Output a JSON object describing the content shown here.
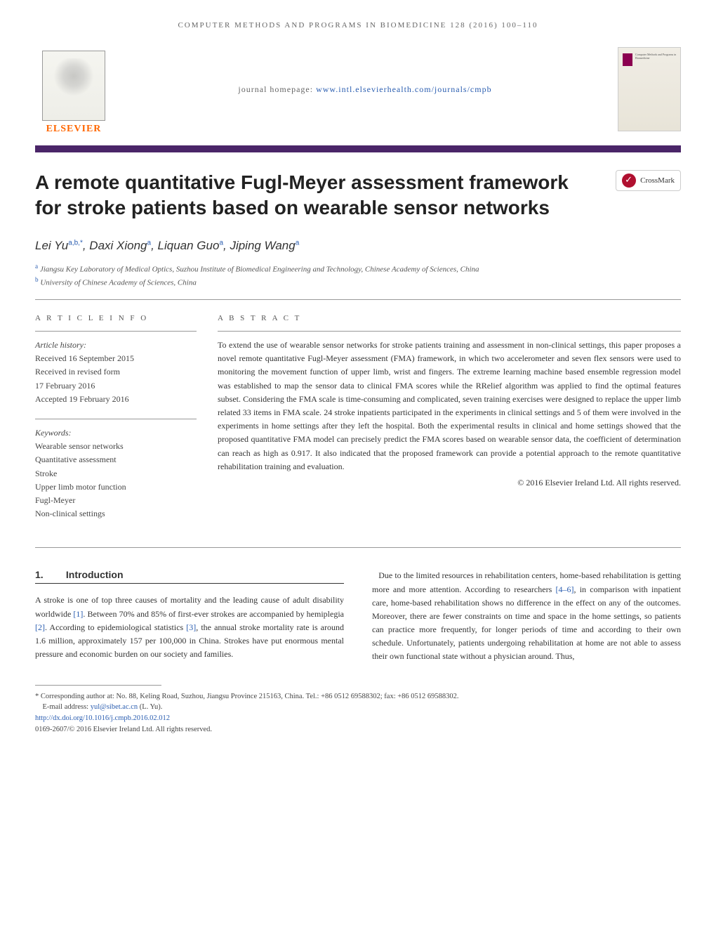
{
  "running_head": "COMPUTER METHODS AND PROGRAMS IN BIOMEDICINE 128 (2016) 100–110",
  "elsevier_label": "ELSEVIER",
  "homepage_prefix": "journal homepage: ",
  "homepage_url": "www.intl.elsevierhealth.com/journals/cmpb",
  "crossmark_label": "CrossMark",
  "title": "A remote quantitative Fugl-Meyer assessment framework for stroke patients based on wearable sensor networks",
  "authors_html": "Lei Yu",
  "author_list": [
    {
      "name": "Lei Yu",
      "sup": "a,b,*"
    },
    {
      "name": "Daxi Xiong",
      "sup": "a"
    },
    {
      "name": "Liquan Guo",
      "sup": "a"
    },
    {
      "name": "Jiping Wang",
      "sup": "a"
    }
  ],
  "affiliations": [
    {
      "sup": "a",
      "text": "Jiangsu Key Laboratory of Medical Optics, Suzhou Institute of Biomedical Engineering and Technology, Chinese Academy of Sciences, China"
    },
    {
      "sup": "b",
      "text": "University of Chinese Academy of Sciences, China"
    }
  ],
  "article_info_label": "A R T I C L E   I N F O",
  "abstract_label": "A B S T R A C T",
  "history_heading": "Article history:",
  "history": [
    "Received 16 September 2015",
    "Received in revised form",
    "17 February 2016",
    "Accepted 19 February 2016"
  ],
  "keywords_heading": "Keywords:",
  "keywords": [
    "Wearable sensor networks",
    "Quantitative assessment",
    "Stroke",
    "Upper limb motor function",
    "Fugl-Meyer",
    "Non-clinical settings"
  ],
  "abstract": "To extend the use of wearable sensor networks for stroke patients training and assessment in non-clinical settings, this paper proposes a novel remote quantitative Fugl-Meyer assessment (FMA) framework, in which two accelerometer and seven flex sensors were used to monitoring the movement function of upper limb, wrist and fingers. The extreme learning machine based ensemble regression model was established to map the sensor data to clinical FMA scores while the RRelief algorithm was applied to find the optimal features subset. Considering the FMA scale is time-consuming and complicated, seven training exercises were designed to replace the upper limb related 33 items in FMA scale. 24 stroke inpatients participated in the experiments in clinical settings and 5 of them were involved in the experiments in home settings after they left the hospital. Both the experimental results in clinical and home settings showed that the proposed quantitative FMA model can precisely predict the FMA scores based on wearable sensor data, the coefficient of determination can reach as high as 0.917. It also indicated that the proposed framework can provide a potential approach to the remote quantitative rehabilitation training and evaluation.",
  "copyright": "© 2016 Elsevier Ireland Ltd. All rights reserved.",
  "section1_num": "1.",
  "section1_title": "Introduction",
  "col1_text": "A stroke is one of top three causes of mortality and the leading cause of adult disability worldwide [1]. Between 70% and 85% of first-ever strokes are accompanied by hemiplegia [2]. According to epidemiological statistics [3], the annual stroke mortality rate is around 1.6 million, approximately 157 per 100,000 in China. Strokes have put enormous mental pressure and economic burden on our society and families.",
  "col1_refs": [
    "[1]",
    "[2]",
    "[3]"
  ],
  "col2_text": "Due to the limited resources in rehabilitation centers, home-based rehabilitation is getting more and more attention. According to researchers [4–6], in comparison with inpatient care, home-based rehabilitation shows no difference in the effect on any of the outcomes. Moreover, there are fewer constraints on time and space in the home settings, so patients can practice more frequently, for longer periods of time and according to their own schedule. Unfortunately, patients undergoing rehabilitation at home are not able to assess their own functional state without a physician around. Thus,",
  "col2_refs": [
    "[4–6]"
  ],
  "footer": {
    "corresponding": "* Corresponding author at: No. 88, Keling Road, Suzhou, Jiangsu Province 215163, China. Tel.: +86 0512 69588302; fax: +86 0512 69588302.",
    "email_label": "E-mail address: ",
    "email": "yul@sibet.ac.cn",
    "email_suffix": " (L. Yu).",
    "doi": "http://dx.doi.org/10.1016/j.cmpb.2016.02.012",
    "issn_line": "0169-2607/© 2016 Elsevier Ireland Ltd. All rights reserved."
  },
  "colors": {
    "purple_bar": "#4a2568",
    "elsevier_orange": "#ff6600",
    "link_blue": "#2a5db0",
    "crossmark_red": "#b01030"
  }
}
